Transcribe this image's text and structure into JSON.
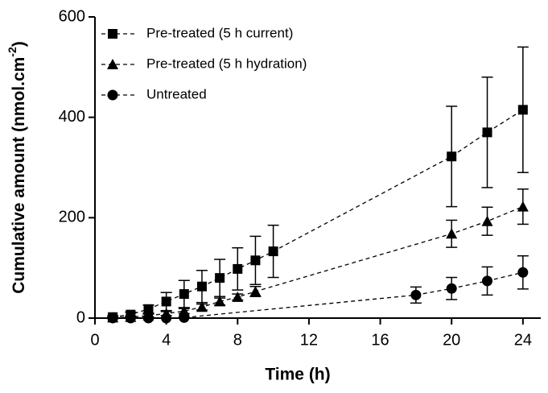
{
  "chart_data": {
    "type": "line",
    "x_label": "Time (h)",
    "y_label": [
      "Cumulative amount (nmol.cm",
      "-2",
      ")"
    ],
    "xlim": [
      0,
      25
    ],
    "xticks": [
      0,
      4,
      8,
      12,
      16,
      20,
      24
    ],
    "ylim": [
      0,
      600
    ],
    "yticks": [
      0,
      200,
      400,
      600
    ],
    "series": [
      {
        "name": "Pre-treated (5 h current)",
        "color": "#000000",
        "marker": "square",
        "x": [
          1,
          2,
          3,
          4,
          5,
          6,
          7,
          8,
          9,
          10,
          20,
          22,
          24
        ],
        "values": [
          2,
          7,
          18,
          33,
          48,
          63,
          80,
          98,
          115,
          133,
          322,
          370,
          415
        ],
        "errors": [
          3,
          5,
          8,
          18,
          27,
          32,
          37,
          42,
          48,
          52,
          100,
          110,
          125
        ]
      },
      {
        "name": "Pre-treated (5 h hydration)",
        "color": "#000000",
        "marker": "triangle",
        "x": [
          1,
          2,
          3,
          4,
          5,
          6,
          7,
          8,
          9,
          20,
          22,
          24
        ],
        "values": [
          1,
          2,
          5,
          9,
          14,
          22,
          33,
          42,
          53,
          168,
          193,
          222
        ],
        "errors": [
          1,
          2,
          3,
          4,
          5,
          6,
          7,
          6,
          10,
          27,
          28,
          35
        ]
      },
      {
        "name": "Untreated",
        "color": "#000000",
        "marker": "circle",
        "x": [
          1,
          2,
          3,
          4,
          5,
          18,
          20,
          22,
          24
        ],
        "values": [
          0,
          0,
          0,
          0,
          1,
          46,
          59,
          74,
          91
        ],
        "errors": [
          0,
          0,
          0,
          0,
          1,
          16,
          22,
          28,
          33
        ]
      }
    ]
  }
}
